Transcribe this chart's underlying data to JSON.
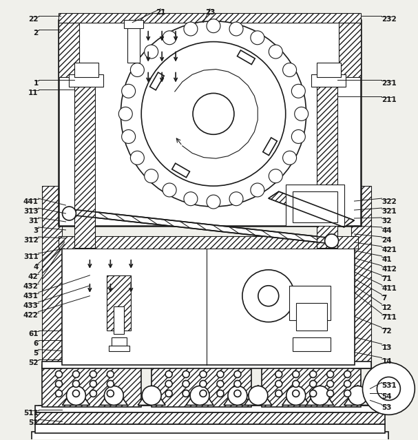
{
  "bg_color": "#f0f0eb",
  "line_color": "#1a1a1a",
  "fig_width": 6.07,
  "fig_height": 6.39,
  "dpi": 100
}
